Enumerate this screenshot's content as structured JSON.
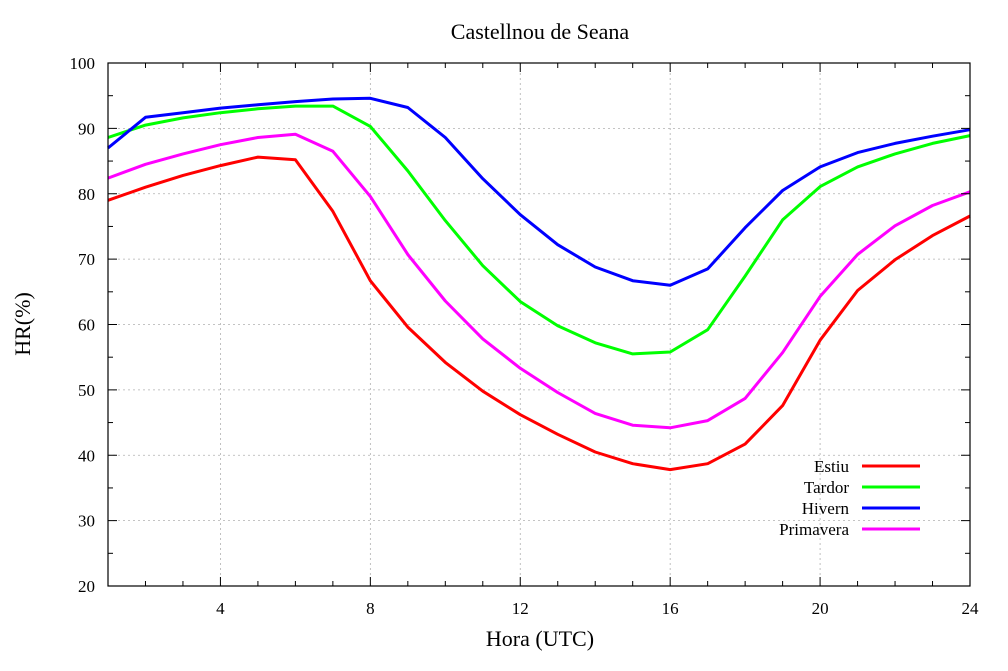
{
  "chart_data": {
    "type": "line",
    "title": "Castellnou de Seana",
    "xlabel": "Hora (UTC)",
    "ylabel": "HR(%)",
    "xlim": [
      1,
      24
    ],
    "ylim": [
      20,
      100
    ],
    "xticks": [
      4,
      8,
      12,
      16,
      20,
      24
    ],
    "yticks": [
      20,
      30,
      40,
      50,
      60,
      70,
      80,
      90,
      100
    ],
    "grid": true,
    "legend_position": "bottom-right",
    "x": [
      1,
      2,
      3,
      4,
      5,
      6,
      7,
      8,
      9,
      10,
      11,
      12,
      13,
      14,
      15,
      16,
      17,
      18,
      19,
      20,
      21,
      22,
      23,
      24
    ],
    "series": [
      {
        "name": "Estiu",
        "color": "#ff0000",
        "values": [
          79.0,
          81.0,
          82.8,
          84.3,
          85.6,
          85.2,
          77.3,
          66.7,
          59.6,
          54.2,
          49.8,
          46.2,
          43.2,
          40.5,
          38.7,
          37.8,
          38.7,
          41.7,
          47.6,
          57.6,
          65.2,
          69.9,
          73.6,
          76.6
        ]
      },
      {
        "name": "Tardor",
        "color": "#00ff00",
        "values": [
          88.6,
          90.5,
          91.6,
          92.4,
          93.0,
          93.4,
          93.4,
          90.3,
          83.5,
          75.9,
          69.0,
          63.5,
          59.8,
          57.2,
          55.5,
          55.8,
          59.2,
          67.4,
          76.0,
          81.1,
          84.1,
          86.1,
          87.7,
          88.9
        ]
      },
      {
        "name": "Hivern",
        "color": "#0000ff",
        "values": [
          87.0,
          91.7,
          92.4,
          93.1,
          93.6,
          94.1,
          94.5,
          94.6,
          93.2,
          88.6,
          82.3,
          76.8,
          72.2,
          68.8,
          66.7,
          66.0,
          68.5,
          74.8,
          80.5,
          84.1,
          86.3,
          87.7,
          88.8,
          89.8
        ]
      },
      {
        "name": "Primavera",
        "color": "#ff00ff",
        "values": [
          82.4,
          84.5,
          86.1,
          87.5,
          88.6,
          89.1,
          86.5,
          79.6,
          70.7,
          63.6,
          57.8,
          53.3,
          49.6,
          46.4,
          44.6,
          44.2,
          45.3,
          48.7,
          55.7,
          64.3,
          70.7,
          75.1,
          78.2,
          80.3
        ]
      }
    ]
  }
}
